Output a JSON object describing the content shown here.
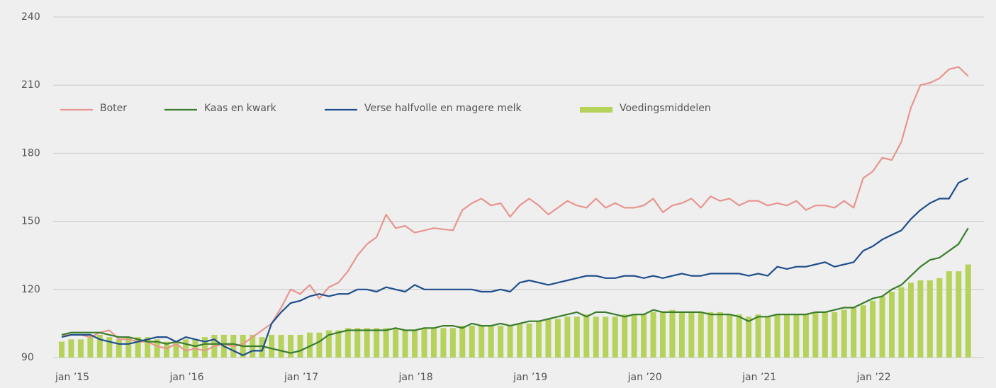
{
  "chart_data": {
    "type": "line",
    "categories": [
      "jan ’15",
      null,
      null,
      null,
      null,
      null,
      null,
      null,
      null,
      null,
      null,
      null,
      "jan ’16",
      null,
      null,
      null,
      null,
      null,
      null,
      null,
      null,
      null,
      null,
      null,
      "jan ’17",
      null,
      null,
      null,
      null,
      null,
      null,
      null,
      null,
      null,
      null,
      null,
      "jan ’18",
      null,
      null,
      null,
      null,
      null,
      null,
      null,
      null,
      null,
      null,
      null,
      "jan ’19",
      null,
      null,
      null,
      null,
      null,
      null,
      null,
      null,
      null,
      null,
      null,
      "jan ’20",
      null,
      null,
      null,
      null,
      null,
      null,
      null,
      null,
      null,
      null,
      null,
      "jan ’21",
      null,
      null,
      null,
      null,
      null,
      null,
      null,
      null,
      null,
      null,
      null,
      "jan ’22",
      null,
      null,
      null,
      null,
      null,
      null,
      null,
      null,
      null,
      null,
      null
    ],
    "series": [
      {
        "name": "Boter",
        "color": "#e8958f",
        "type": "line",
        "values": [
          100,
          100,
          100,
          99,
          101,
          102,
          98,
          98,
          97,
          97,
          95,
          94,
          96,
          93,
          94,
          93,
          95,
          96,
          95,
          96,
          99,
          102,
          105,
          112,
          120,
          118,
          122,
          116,
          121,
          123,
          128,
          135,
          140,
          143,
          153,
          147,
          148,
          145,
          146,
          147,
          146.5,
          146,
          155,
          158,
          160,
          157,
          158,
          152,
          157,
          160,
          157,
          153,
          156,
          159,
          157,
          156,
          160,
          156,
          158,
          156,
          156,
          157,
          160,
          154,
          157,
          158,
          160,
          156,
          161,
          159,
          160,
          157,
          159,
          159,
          157,
          158,
          157,
          159,
          155,
          157,
          157,
          156,
          159,
          156,
          169,
          172,
          178,
          177,
          185,
          200,
          210,
          211,
          213,
          217,
          218,
          214
        ]
      },
      {
        "name": "Kaas en kwark",
        "color": "#3a7d2c",
        "type": "line",
        "values": [
          100,
          101,
          101,
          101,
          101,
          100,
          99,
          99,
          98,
          97,
          97,
          96,
          97,
          96,
          95,
          96,
          96,
          96,
          96,
          95,
          95,
          95,
          94,
          93,
          92,
          93,
          95,
          97,
          100,
          101,
          102,
          102,
          102,
          102,
          102,
          103,
          102,
          102,
          103,
          103,
          104,
          104,
          103,
          105,
          104,
          104,
          105,
          104,
          105,
          106,
          106,
          107,
          108,
          109,
          110,
          108,
          110,
          110,
          109,
          108,
          109,
          109,
          111,
          110,
          110,
          110,
          110,
          110,
          109,
          109,
          109,
          108,
          106,
          108,
          108,
          109,
          109,
          109,
          109,
          110,
          110,
          111,
          112,
          112,
          114,
          116,
          117,
          120,
          122,
          126,
          130,
          133,
          134,
          137,
          140,
          147
        ]
      },
      {
        "name": "Verse halfvolle en magere melk",
        "color": "#1f4e8c",
        "type": "line",
        "values": [
          99,
          100,
          100,
          100,
          98,
          97,
          96,
          96,
          97,
          98,
          99,
          99,
          97,
          99,
          98,
          97,
          98,
          95,
          93,
          91,
          93,
          93,
          105,
          110,
          114,
          115,
          117,
          118,
          117,
          118,
          118,
          120,
          120,
          119,
          121,
          120,
          119,
          122,
          120,
          120,
          120,
          120,
          120,
          120,
          119,
          119,
          120,
          119,
          123,
          124,
          123,
          122,
          123,
          124,
          125,
          126,
          126,
          125,
          125,
          126,
          126,
          125,
          126,
          125,
          126,
          127,
          126,
          126,
          127,
          127,
          127,
          127,
          126,
          127,
          126,
          130,
          129,
          130,
          130,
          131,
          132,
          130,
          131,
          132,
          137,
          139,
          142,
          144,
          146,
          151,
          155,
          158,
          160,
          160,
          167,
          169
        ]
      },
      {
        "name": "Voedingsmiddelen",
        "color": "#b5d35b",
        "type": "bar",
        "values": [
          97,
          98,
          98,
          99,
          100,
          99,
          98,
          99,
          99,
          99,
          98,
          97,
          97,
          98,
          98,
          99,
          100,
          100,
          100,
          100,
          100,
          99,
          100,
          100,
          100,
          100,
          101,
          101,
          102,
          102,
          103,
          103,
          103,
          103,
          103,
          103,
          102,
          102,
          103,
          103,
          103,
          103,
          104,
          104,
          104,
          104,
          104,
          104,
          105,
          105,
          106,
          107,
          107,
          108,
          108,
          109,
          108,
          108,
          108,
          109,
          109,
          109,
          110,
          110,
          111,
          110,
          110,
          110,
          110,
          110,
          109,
          109,
          108,
          109,
          108,
          109,
          109,
          109,
          109,
          110,
          110,
          110,
          111,
          112,
          113,
          115,
          117,
          119,
          121,
          123,
          124,
          124,
          125,
          128,
          128,
          131
        ]
      }
    ],
    "ylim": [
      90,
      240
    ],
    "yticks": [
      90,
      120,
      150,
      180,
      210,
      240
    ],
    "grid": true,
    "legend": "top-left"
  }
}
